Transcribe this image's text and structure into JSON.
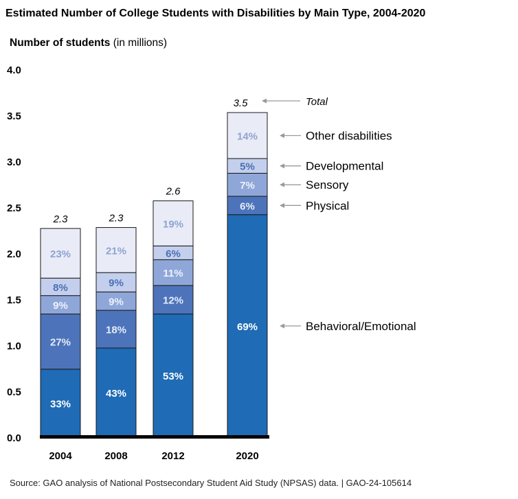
{
  "chart_data": {
    "type": "bar",
    "stacked": true,
    "title": "Estimated Number of College Students with Disabilities by Main Type, 2004-2020",
    "ylabel_bold": "Number of students",
    "ylabel_unit": "(in millions)",
    "ylim": [
      0,
      4.0
    ],
    "yticks": [
      "0.0",
      "0.5",
      "1.0",
      "1.5",
      "2.0",
      "2.5",
      "3.0",
      "3.5",
      "4.0"
    ],
    "grid": false,
    "categories": [
      "2004",
      "2008",
      "2012",
      "2020"
    ],
    "totals": [
      2.3,
      2.3,
      2.6,
      3.5
    ],
    "total_labels": [
      "2.3",
      "2.3",
      "2.6",
      "3.5"
    ],
    "total_legend": "Total",
    "series": [
      {
        "name": "Behavioral/Emotional",
        "color": "#1f6bb5",
        "label_color": "#ffffff",
        "values": [
          0.74,
          0.97,
          1.34,
          2.42
        ],
        "labels": [
          "33%",
          "43%",
          "53%",
          "69%"
        ]
      },
      {
        "name": "Physical",
        "color": "#4d74ba",
        "label_color": "#e6ecf8",
        "values": [
          0.6,
          0.41,
          0.31,
          0.2
        ],
        "labels": [
          "27%",
          "18%",
          "12%",
          "6%"
        ]
      },
      {
        "name": "Sensory",
        "color": "#8fa7d8",
        "label_color": "#eef2fb",
        "values": [
          0.2,
          0.2,
          0.28,
          0.25
        ],
        "labels": [
          "9%",
          "9%",
          "11%",
          "7%"
        ]
      },
      {
        "name": "Developmental",
        "color": "#c3cfec",
        "label_color": "#4d6fb5",
        "values": [
          0.19,
          0.21,
          0.15,
          0.16
        ],
        "labels": [
          "8%",
          "9%",
          "6%",
          "5%"
        ]
      },
      {
        "name": "Other disabilities",
        "color": "#e9ecf7",
        "label_color": "#8fa3d0",
        "values": [
          0.54,
          0.49,
          0.49,
          0.5
        ],
        "labels": [
          "23%",
          "21%",
          "19%",
          "14%"
        ]
      }
    ],
    "legend_placement": "right"
  },
  "source": "Source: GAO analysis of National Postsecondary Student Aid Study (NPSAS) data.  |  GAO-24-105614"
}
